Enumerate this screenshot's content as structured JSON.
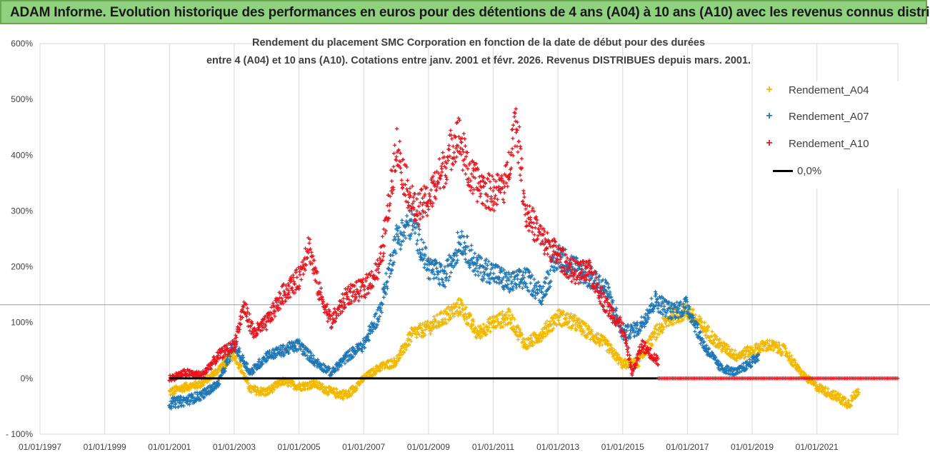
{
  "header": {
    "title": "ADAM Informe. Evolution historique des performances en euros pour des détentions de 4 ans (A04) à 10 ans (A10) avec les revenus connus distribués"
  },
  "chart_data": {
    "type": "scatter",
    "title_line1": "Rendement du placement SMC Corporation en fonction de la date de début pour des durées",
    "title_line2": "entre 4 (A04) et 10 ans (A10). Cotations entre janv. 2001 et févr. 2026. Revenus DISTRIBUES depuis mars. 2001.",
    "y_range": [
      -100,
      600
    ],
    "y_ticks": [
      -100,
      0,
      100,
      200,
      300,
      400,
      500,
      600
    ],
    "y_tick_labels": [
      "- 100%",
      "0%",
      "100%",
      "200%",
      "300%",
      "400%",
      "500%",
      "600%"
    ],
    "x_range": [
      1997,
      2023.5
    ],
    "x_ticks": [
      1997,
      1999,
      2001,
      2003,
      2005,
      2007,
      2009,
      2011,
      2013,
      2015,
      2017,
      2019,
      2021
    ],
    "x_tick_labels": [
      "01/01/1997",
      "01/01/1999",
      "01/01/2001",
      "01/01/2003",
      "01/01/2005",
      "01/01/2007",
      "01/01/2009",
      "01/01/2011",
      "01/01/2013",
      "01/01/2015",
      "01/01/2017",
      "01/01/2019",
      "01/01/2021"
    ],
    "reference_value": 132,
    "series": [
      {
        "name": "Rendement_A04",
        "color": "#f2b800",
        "x_end": 2022.3,
        "x": [
          2001.0,
          2001.5,
          2002.0,
          2002.5,
          2003.0,
          2003.5,
          2004.0,
          2004.5,
          2005.0,
          2005.5,
          2006.0,
          2006.5,
          2007.0,
          2007.5,
          2008.0,
          2008.5,
          2009.0,
          2009.5,
          2010.0,
          2010.5,
          2011.0,
          2011.5,
          2012.0,
          2012.5,
          2013.0,
          2013.5,
          2014.0,
          2014.5,
          2015.0,
          2015.5,
          2016.0,
          2016.5,
          2017.0,
          2017.5,
          2018.0,
          2018.5,
          2019.0,
          2019.5,
          2020.0,
          2020.5,
          2021.0,
          2021.5,
          2022.0,
          2022.3
        ],
        "values": [
          -25,
          -15,
          -10,
          15,
          45,
          -20,
          -25,
          -5,
          -15,
          -10,
          -25,
          -30,
          0,
          20,
          30,
          80,
          90,
          110,
          130,
          80,
          100,
          110,
          60,
          80,
          110,
          100,
          80,
          60,
          25,
          30,
          80,
          110,
          120,
          90,
          60,
          40,
          50,
          60,
          50,
          10,
          -15,
          -30,
          -45,
          -20
        ]
      },
      {
        "name": "Rendement_A07",
        "color": "#1f77b4",
        "x_end": 2019.2,
        "x": [
          2001.0,
          2001.5,
          2002.0,
          2002.5,
          2003.0,
          2003.5,
          2004.0,
          2004.5,
          2005.0,
          2005.5,
          2006.0,
          2006.5,
          2007.0,
          2007.5,
          2008.0,
          2008.5,
          2009.0,
          2009.5,
          2010.0,
          2010.5,
          2011.0,
          2011.5,
          2012.0,
          2012.5,
          2013.0,
          2013.5,
          2014.0,
          2014.5,
          2015.0,
          2015.5,
          2016.0,
          2016.5,
          2017.0,
          2017.5,
          2018.0,
          2018.5,
          2019.0,
          2019.2
        ],
        "values": [
          -45,
          -40,
          -30,
          -10,
          60,
          10,
          40,
          50,
          60,
          30,
          10,
          40,
          60,
          120,
          250,
          280,
          200,
          180,
          250,
          200,
          190,
          170,
          180,
          150,
          220,
          200,
          180,
          160,
          80,
          90,
          140,
          120,
          130,
          60,
          20,
          10,
          30,
          40
        ]
      },
      {
        "name": "Rendement_A10",
        "color": "#e8141e",
        "x_end": 2016.1,
        "x": [
          2001.0,
          2001.5,
          2002.0,
          2002.5,
          2003.0,
          2003.3,
          2003.6,
          2004.0,
          2004.5,
          2005.0,
          2005.3,
          2005.6,
          2006.0,
          2006.5,
          2007.0,
          2007.5,
          2007.8,
          2008.0,
          2008.3,
          2008.6,
          2009.0,
          2009.5,
          2009.9,
          2010.3,
          2010.7,
          2011.0,
          2011.4,
          2011.7,
          2012.0,
          2012.5,
          2013.0,
          2013.5,
          2014.0,
          2014.5,
          2015.0,
          2015.3,
          2015.6,
          2016.1
        ],
        "values": [
          0,
          10,
          5,
          40,
          60,
          130,
          80,
          100,
          150,
          180,
          240,
          160,
          100,
          150,
          160,
          200,
          320,
          420,
          350,
          300,
          320,
          380,
          440,
          360,
          340,
          330,
          350,
          470,
          300,
          250,
          220,
          190,
          190,
          130,
          90,
          10,
          60,
          30
        ]
      }
    ],
    "flat_series": {
      "color": "#e8141e",
      "x_start": 2016.1,
      "x_end": 2023.5,
      "value": 0
    },
    "zero_line": {
      "color": "#000000",
      "x_start": 2001.0,
      "x_end": 2016.1,
      "value": 0
    },
    "legend": {
      "items": [
        {
          "label": "Rendement_A04",
          "color": "#f2b800",
          "kind": "marker"
        },
        {
          "label": "Rendement_A07",
          "color": "#1f77b4",
          "kind": "marker"
        },
        {
          "label": "Rendement_A10",
          "color": "#e8141e",
          "kind": "marker"
        },
        {
          "label": "0,0%",
          "color": "#000000",
          "kind": "line"
        }
      ]
    }
  }
}
